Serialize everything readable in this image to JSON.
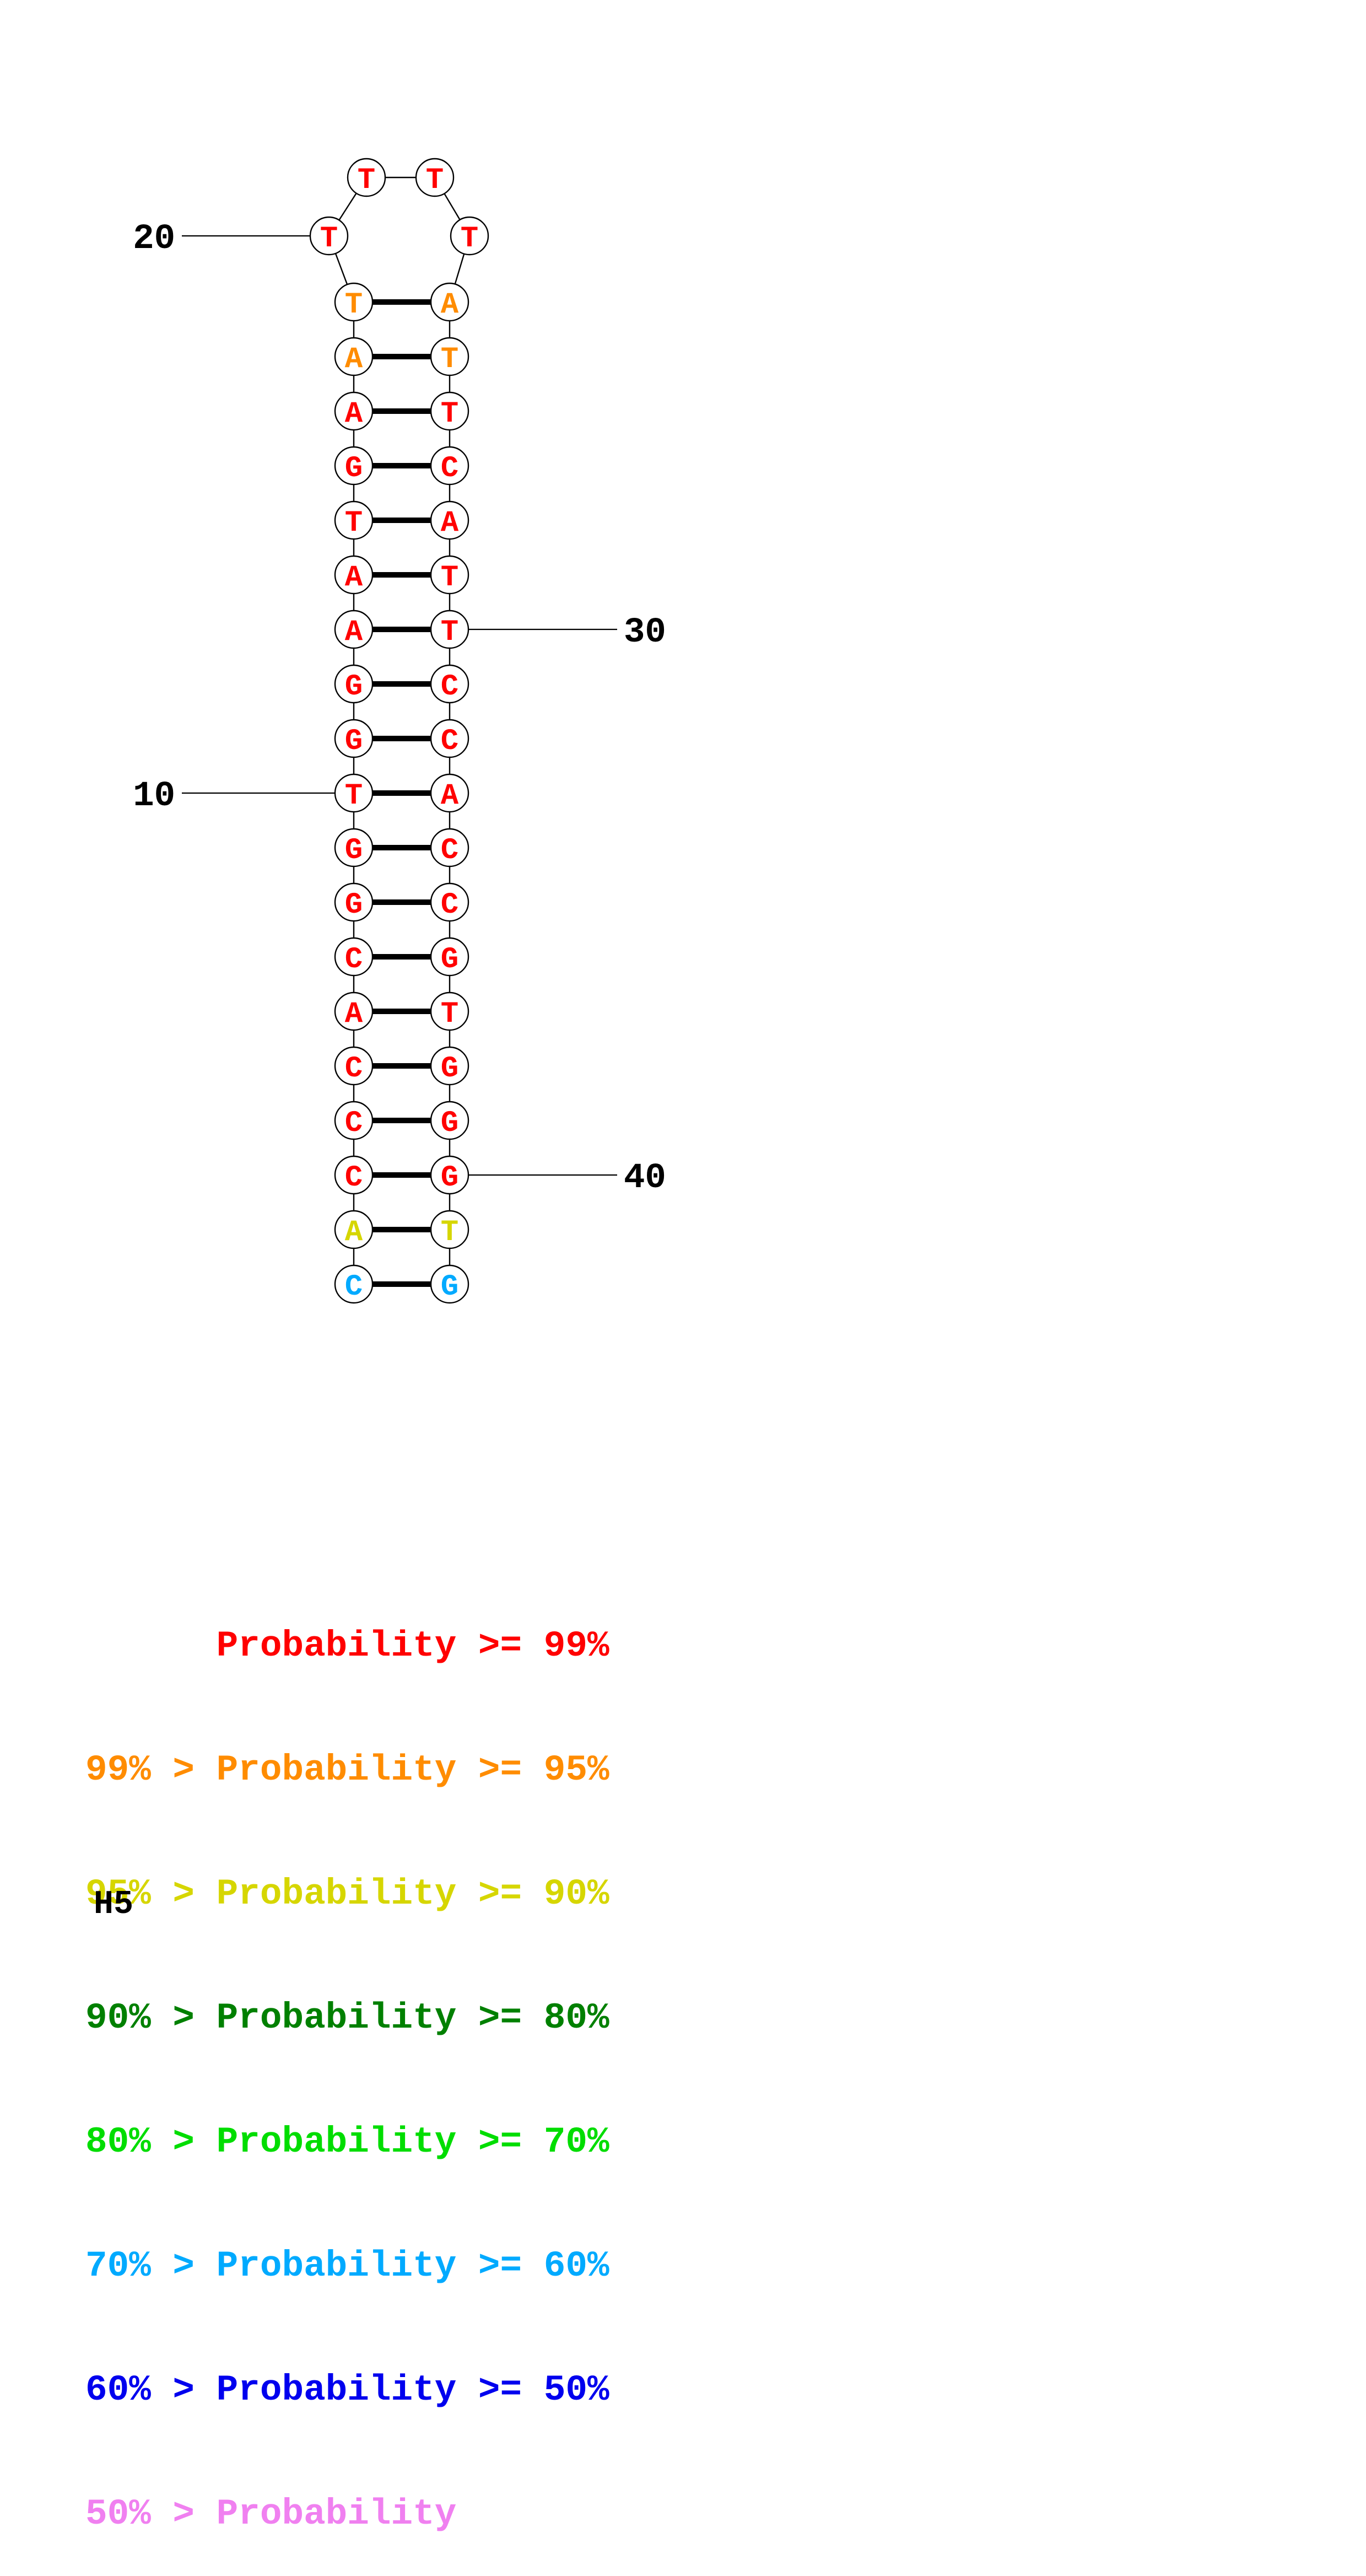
{
  "footer_label": "H5",
  "legend": {
    "items": [
      {
        "text": "      Probability >= 99%",
        "color": "#ff0000"
      },
      {
        "text": "99% > Probability >= 95%",
        "color": "#ff8c00"
      },
      {
        "text": "95% > Probability >= 90%",
        "color": "#d6d600"
      },
      {
        "text": "90% > Probability >= 80%",
        "color": "#008000"
      },
      {
        "text": "80% > Probability >= 70%",
        "color": "#00dd00"
      },
      {
        "text": "70% > Probability >= 60%",
        "color": "#00aaff"
      },
      {
        "text": "60% > Probability >= 50%",
        "color": "#0000ee"
      },
      {
        "text": "50% > Probability",
        "color": "#f080f0"
      }
    ]
  },
  "diagram": {
    "loop": [
      {
        "base": "T",
        "color": "#ff0000",
        "position": "top-left"
      },
      {
        "base": "T",
        "color": "#ff0000",
        "position": "top-right"
      },
      {
        "base": "T",
        "color": "#ff0000",
        "position": "left"
      },
      {
        "base": "T",
        "color": "#ff0000",
        "position": "right"
      }
    ],
    "pairs": [
      {
        "left": "T",
        "right": "A",
        "left_color": "#ff8c00",
        "right_color": "#ff8c00"
      },
      {
        "left": "A",
        "right": "T",
        "left_color": "#ff8c00",
        "right_color": "#ff8c00"
      },
      {
        "left": "A",
        "right": "T",
        "left_color": "#ff0000",
        "right_color": "#ff0000"
      },
      {
        "left": "G",
        "right": "C",
        "left_color": "#ff0000",
        "right_color": "#ff0000"
      },
      {
        "left": "T",
        "right": "A",
        "left_color": "#ff0000",
        "right_color": "#ff0000"
      },
      {
        "left": "A",
        "right": "T",
        "left_color": "#ff0000",
        "right_color": "#ff0000"
      },
      {
        "left": "A",
        "right": "T",
        "left_color": "#ff0000",
        "right_color": "#ff0000"
      },
      {
        "left": "G",
        "right": "C",
        "left_color": "#ff0000",
        "right_color": "#ff0000"
      },
      {
        "left": "G",
        "right": "C",
        "left_color": "#ff0000",
        "right_color": "#ff0000"
      },
      {
        "left": "T",
        "right": "A",
        "left_color": "#ff0000",
        "right_color": "#ff0000"
      },
      {
        "left": "G",
        "right": "C",
        "left_color": "#ff0000",
        "right_color": "#ff0000"
      },
      {
        "left": "G",
        "right": "C",
        "left_color": "#ff0000",
        "right_color": "#ff0000"
      },
      {
        "left": "C",
        "right": "G",
        "left_color": "#ff0000",
        "right_color": "#ff0000"
      },
      {
        "left": "A",
        "right": "T",
        "left_color": "#ff0000",
        "right_color": "#ff0000"
      },
      {
        "left": "C",
        "right": "G",
        "left_color": "#ff0000",
        "right_color": "#ff0000"
      },
      {
        "left": "C",
        "right": "G",
        "left_color": "#ff0000",
        "right_color": "#ff0000"
      },
      {
        "left": "C",
        "right": "G",
        "left_color": "#ff0000",
        "right_color": "#ff0000"
      },
      {
        "left": "A",
        "right": "T",
        "left_color": "#d6d600",
        "right_color": "#d6d600"
      },
      {
        "left": "C",
        "right": "G",
        "left_color": "#00aaff",
        "right_color": "#00aaff"
      }
    ],
    "position_labels": [
      {
        "text": "20",
        "row": "loop-left",
        "side": "left"
      },
      {
        "text": "10",
        "row": 9,
        "side": "left"
      },
      {
        "text": "30",
        "row": 6,
        "side": "right"
      },
      {
        "text": "40",
        "row": 16,
        "side": "right"
      }
    ]
  }
}
